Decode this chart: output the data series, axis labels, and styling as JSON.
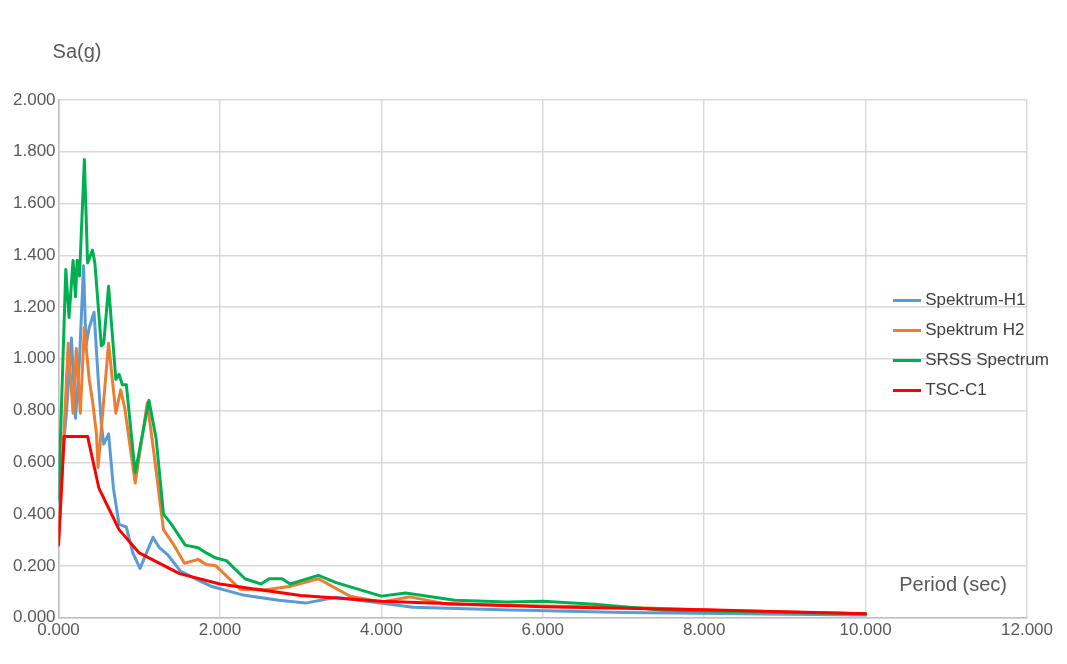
{
  "chart_data": {
    "type": "line",
    "xlabel": "Period (sec)",
    "ylabel": "Sa(g)",
    "xlim": [
      0,
      12
    ],
    "ylim": [
      0,
      2
    ],
    "xticks": [
      {
        "value": 0,
        "label": "0.000"
      },
      {
        "value": 2,
        "label": "2.000"
      },
      {
        "value": 4,
        "label": "4.000"
      },
      {
        "value": 6,
        "label": "6.000"
      },
      {
        "value": 8,
        "label": "8.000"
      },
      {
        "value": 10,
        "label": "10.000"
      },
      {
        "value": 12,
        "label": "12.000"
      }
    ],
    "yticks": [
      {
        "value": 0,
        "label": "0.000"
      },
      {
        "value": 0.2,
        "label": "0.200"
      },
      {
        "value": 0.4,
        "label": "0.400"
      },
      {
        "value": 0.6,
        "label": "0.600"
      },
      {
        "value": 0.8,
        "label": "0.800"
      },
      {
        "value": 1,
        "label": "1.000"
      },
      {
        "value": 1.2,
        "label": "1.200"
      },
      {
        "value": 1.4,
        "label": "1.400"
      },
      {
        "value": 1.6,
        "label": "1.600"
      },
      {
        "value": 1.8,
        "label": "1.800"
      },
      {
        "value": 2,
        "label": "2.000"
      }
    ],
    "grid": true,
    "legend": "right",
    "marker": "none",
    "line_style": "solid",
    "series": [
      {
        "name": "Spektrum-H1",
        "color": "#5b9bd5",
        "x": [
          0,
          0.1,
          0.16,
          0.21,
          0.26,
          0.31,
          0.34,
          0.38,
          0.44,
          0.49,
          0.53,
          0.56,
          0.62,
          0.68,
          0.75,
          0.84,
          0.92,
          1.01,
          1.17,
          1.25,
          1.36,
          1.51,
          1.73,
          1.9,
          2.29,
          2.73,
          3.06,
          3.44,
          4.39,
          5.78,
          7,
          8.5,
          10
        ],
        "values": [
          0.45,
          0.8,
          1.08,
          0.77,
          1.0,
          1.36,
          1.05,
          1.12,
          1.18,
          0.93,
          0.75,
          0.67,
          0.71,
          0.5,
          0.36,
          0.35,
          0.25,
          0.19,
          0.31,
          0.27,
          0.24,
          0.18,
          0.145,
          0.12,
          0.087,
          0.067,
          0.056,
          0.079,
          0.04,
          0.028,
          0.02,
          0.015,
          0.01
        ]
      },
      {
        "name": "Spektrum H2",
        "color": "#ed7d31",
        "x": [
          0,
          0.05,
          0.12,
          0.18,
          0.22,
          0.27,
          0.32,
          0.38,
          0.42,
          0.47,
          0.49,
          0.56,
          0.62,
          0.71,
          0.77,
          0.82,
          0.95,
          1.1,
          1.18,
          1.3,
          1.43,
          1.56,
          1.73,
          1.83,
          1.95,
          2.25,
          2.55,
          2.86,
          3.22,
          3.61,
          4.0,
          4.35,
          4.82,
          6,
          7,
          8.5,
          10
        ],
        "values": [
          0.3,
          0.6,
          1.06,
          0.79,
          1.04,
          0.79,
          1.12,
          0.92,
          0.84,
          0.71,
          0.58,
          0.84,
          1.06,
          0.79,
          0.88,
          0.81,
          0.52,
          0.83,
          0.64,
          0.34,
          0.28,
          0.21,
          0.225,
          0.205,
          0.2,
          0.11,
          0.107,
          0.12,
          0.15,
          0.083,
          0.06,
          0.08,
          0.052,
          0.045,
          0.04,
          0.025,
          0.015
        ]
      },
      {
        "name": "SRSS Spectrum",
        "color": "#00b050",
        "x": [
          0,
          0.09,
          0.13,
          0.18,
          0.21,
          0.23,
          0.26,
          0.32,
          0.36,
          0.42,
          0.45,
          0.53,
          0.56,
          0.62,
          0.71,
          0.75,
          0.79,
          0.84,
          0.92,
          0.95,
          1.12,
          1.21,
          1.3,
          1.4,
          1.57,
          1.73,
          1.83,
          1.95,
          2.08,
          2.31,
          2.51,
          2.61,
          2.77,
          2.87,
          3.22,
          3.44,
          4.0,
          4.3,
          4.91,
          5.56,
          6.0,
          6.64,
          7.5,
          10
        ],
        "values": [
          0.46,
          1.345,
          1.16,
          1.38,
          1.24,
          1.38,
          1.32,
          1.77,
          1.37,
          1.42,
          1.37,
          1.05,
          1.06,
          1.28,
          0.92,
          0.94,
          0.9,
          0.9,
          0.65,
          0.56,
          0.84,
          0.69,
          0.4,
          0.36,
          0.28,
          0.27,
          0.25,
          0.23,
          0.22,
          0.15,
          0.13,
          0.15,
          0.15,
          0.13,
          0.163,
          0.135,
          0.083,
          0.095,
          0.067,
          0.06,
          0.063,
          0.052,
          0.028,
          0.015
        ]
      },
      {
        "name": "TSC-C1",
        "color": "#ff0000",
        "x": [
          0,
          0.07,
          0.36,
          0.5,
          0.75,
          1.0,
          1.5,
          2.0,
          3.0,
          4.0,
          6.0,
          8.0,
          10.0
        ],
        "values": [
          0.28,
          0.7,
          0.7,
          0.5,
          0.34,
          0.25,
          0.17,
          0.13,
          0.085,
          0.063,
          0.042,
          0.03,
          0.015
        ]
      }
    ]
  }
}
